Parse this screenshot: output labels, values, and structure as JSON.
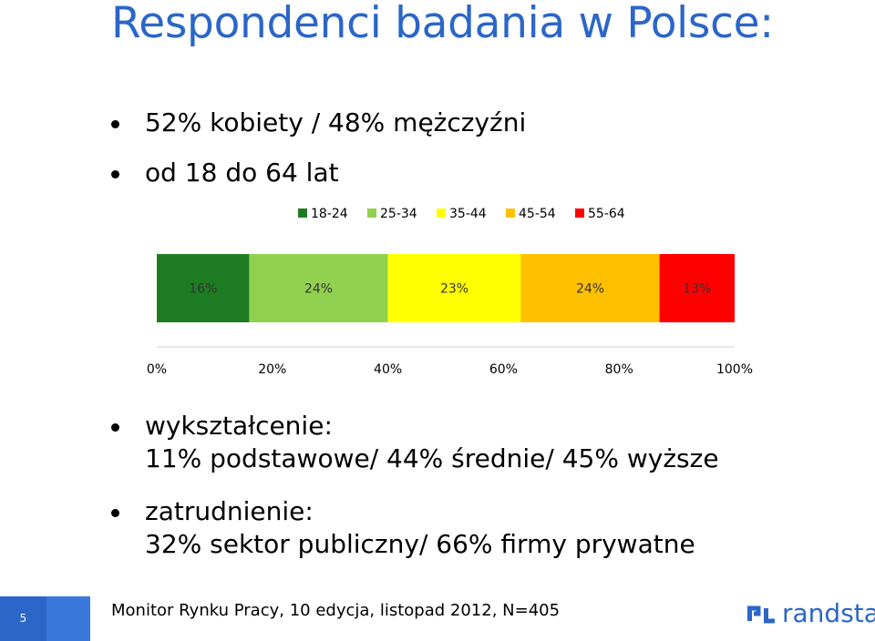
{
  "title": "Respondenci badania w Polsce:",
  "bullets": [
    {
      "lines": [
        "52% kobiety / 48% mężczyźni"
      ]
    },
    {
      "lines": [
        "od 18 do 64 lat"
      ]
    },
    {
      "lines": [
        "wykształcenie:",
        "11% podstawowe/ 44% średnie/ 45% wyższe"
      ]
    },
    {
      "lines": [
        "zatrudnienie:",
        "32% sektor publiczny/ 66% firmy prywatne"
      ]
    }
  ],
  "chart_data": {
    "type": "bar",
    "orientation": "horizontal",
    "stacked": "percent",
    "categories": [
      ""
    ],
    "series": [
      {
        "name": "18-24",
        "values": [
          16
        ],
        "label": "16%",
        "color": "#1e7d23"
      },
      {
        "name": "25-34",
        "values": [
          24
        ],
        "label": "24%",
        "color": "#92d050"
      },
      {
        "name": "35-44",
        "values": [
          23
        ],
        "label": "23%",
        "color": "#ffff00"
      },
      {
        "name": "45-54",
        "values": [
          24
        ],
        "label": "24%",
        "color": "#ffc000"
      },
      {
        "name": "55-64",
        "values": [
          13
        ],
        "label": "13%",
        "color": "#ff0000"
      }
    ],
    "xlim": [
      0,
      100
    ],
    "xticks": [
      "0%",
      "20%",
      "40%",
      "60%",
      "80%",
      "100%"
    ],
    "legend_position": "top",
    "grid": false
  },
  "footer": {
    "page_number": "5",
    "source": "Monitor Rynku Pracy, 10 edycja, listopad 2012, N=405",
    "logo_text": "randstad",
    "brand_color": "#2b66c8"
  }
}
